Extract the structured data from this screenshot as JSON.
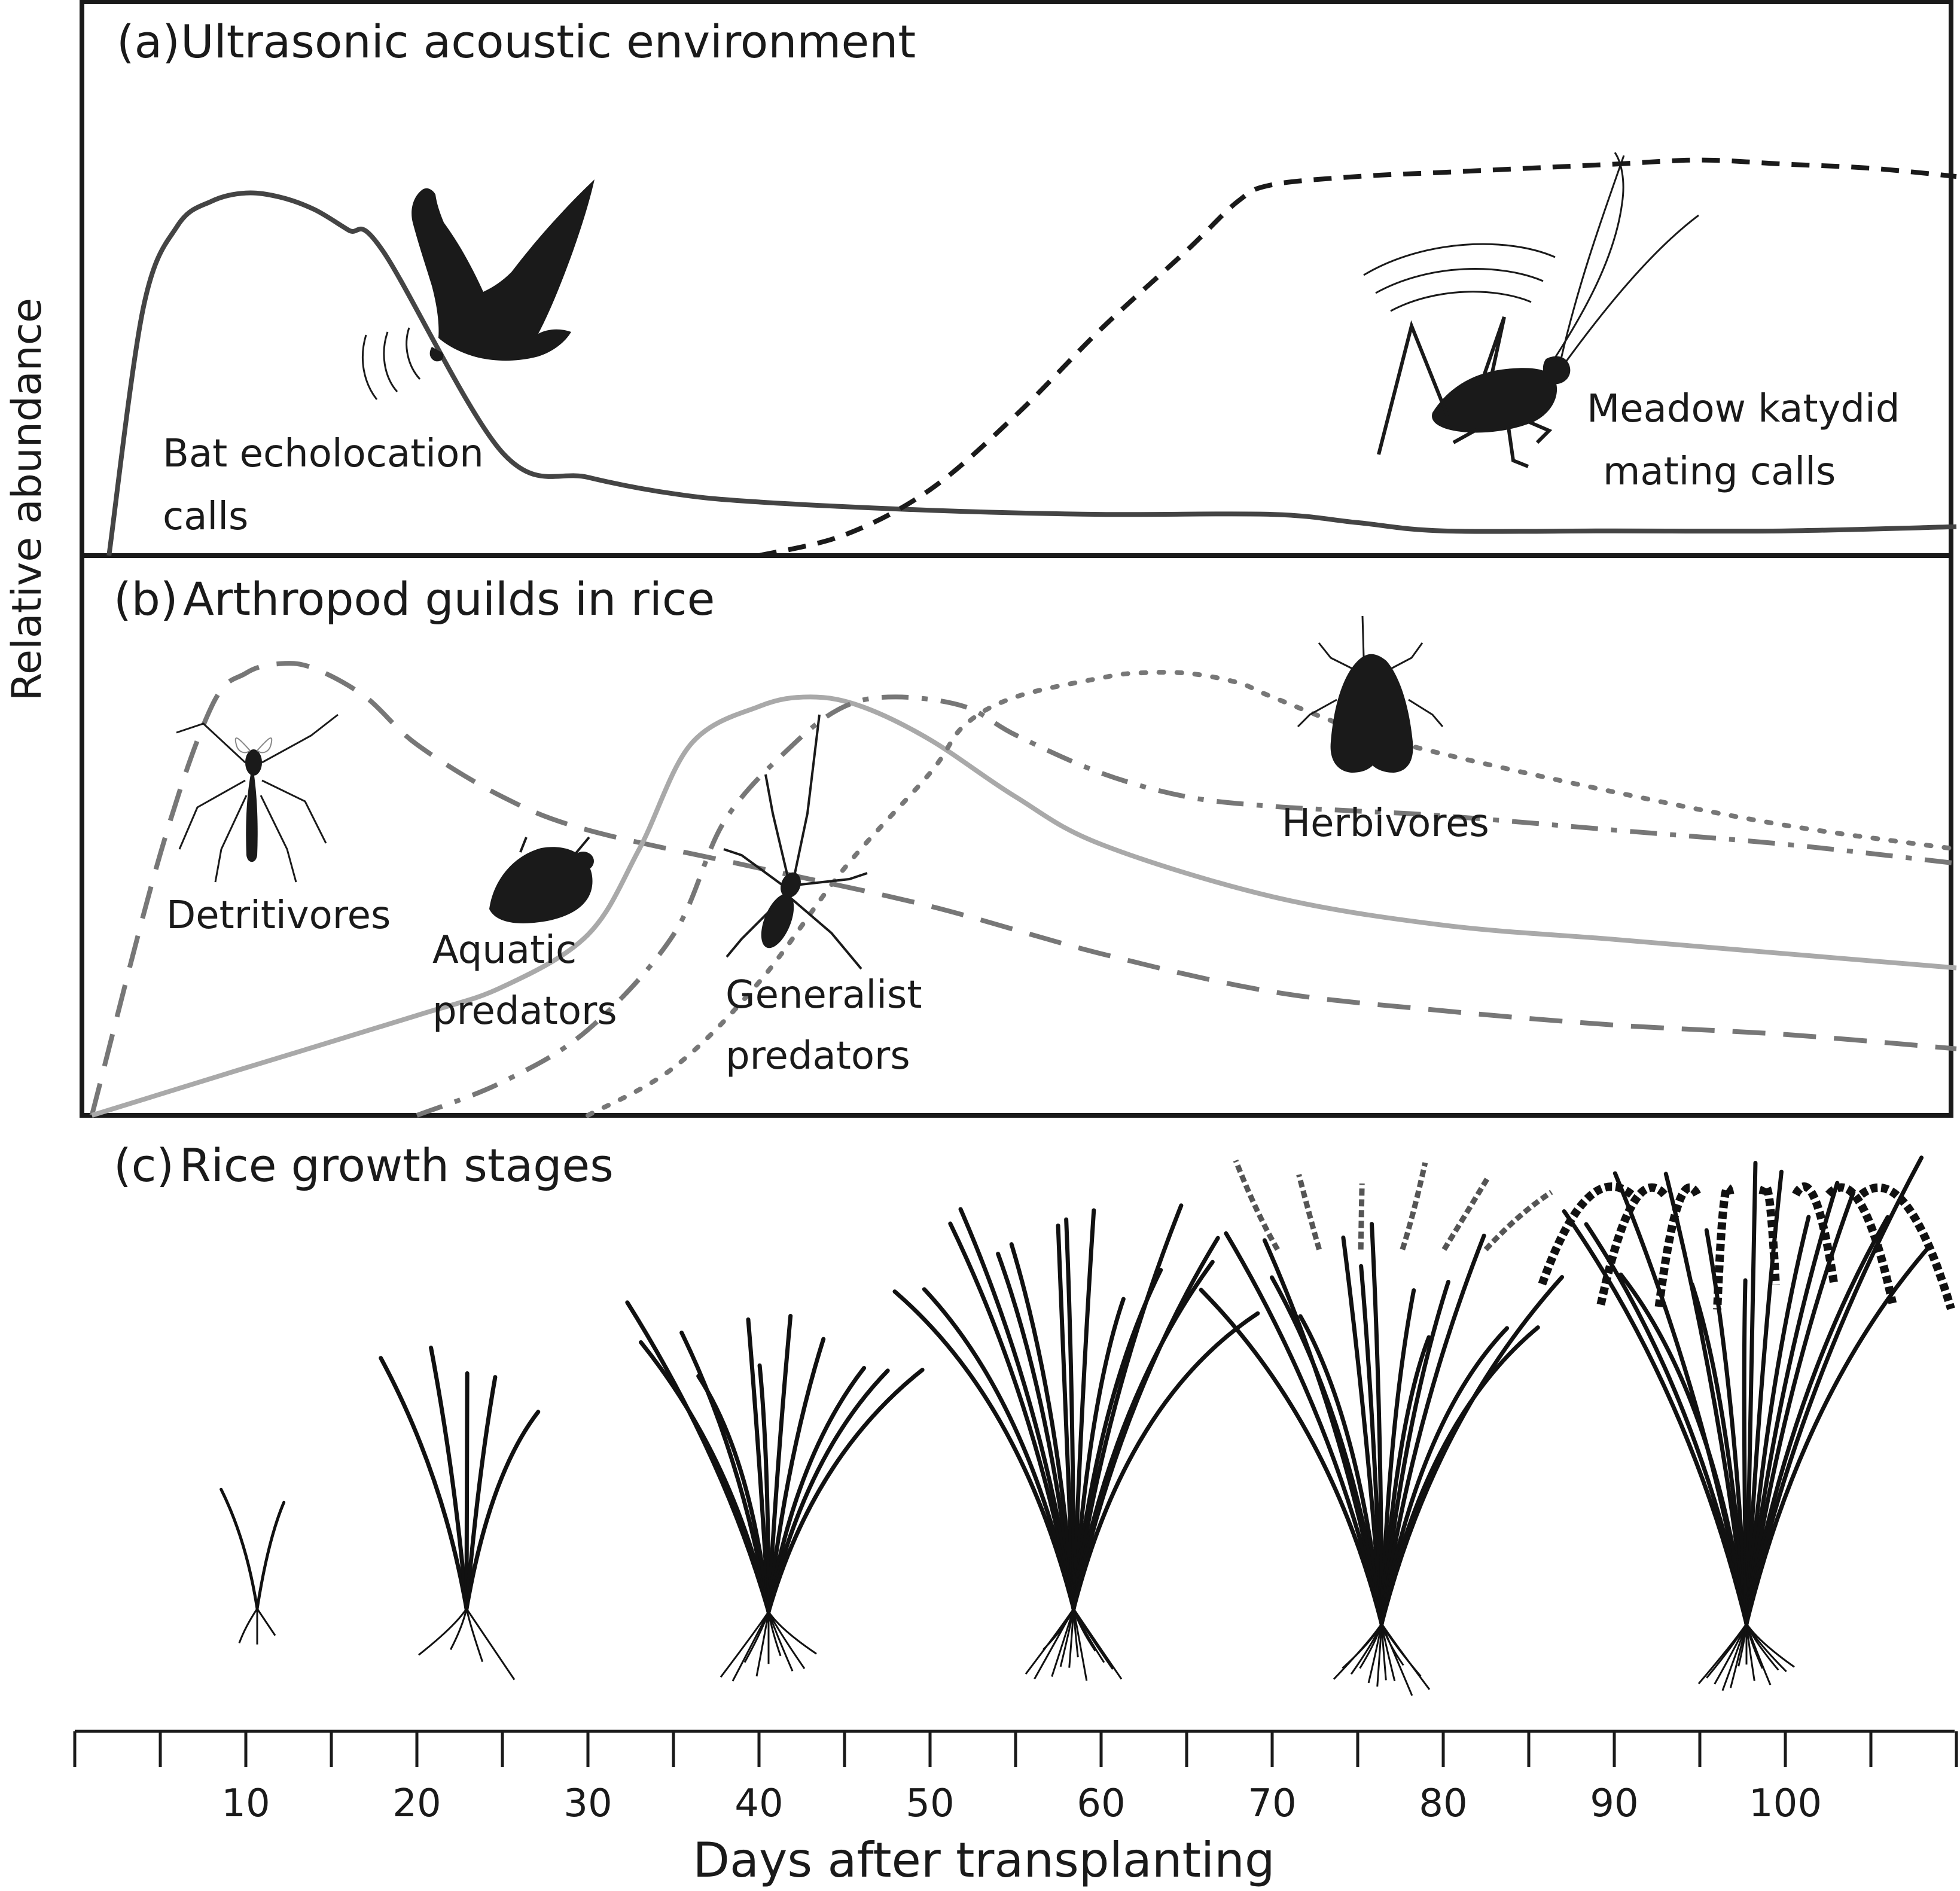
{
  "y_axis_label": "Relative abundance",
  "panels": {
    "a": {
      "label": "(a)",
      "title": "Ultrasonic acoustic environment",
      "annotations": {
        "bat_line1": "Bat echolocation",
        "bat_line2": "calls",
        "katydid_line1": "Meadow katydid",
        "katydid_line2": "mating calls"
      }
    },
    "b": {
      "label": "(b)",
      "title": "Arthropod guilds in rice",
      "annotations": {
        "detritivores": "Detritivores",
        "aquatic_line1": "Aquatic",
        "aquatic_line2": "predators",
        "generalist_line1": "Generalist",
        "generalist_line2": "predators",
        "herbivores": "Herbivores"
      }
    },
    "c": {
      "label": "(c)",
      "title": "Rice growth stages"
    }
  },
  "x_axis": {
    "label": "Days after transplanting",
    "ticks": [
      "10",
      "20",
      "30",
      "40",
      "50",
      "60",
      "70",
      "80",
      "90",
      "100"
    ],
    "range": [
      0,
      110
    ]
  },
  "chart_data": [
    {
      "type": "line",
      "panel": "a",
      "title": "Ultrasonic acoustic environment",
      "xlabel": "Days after transplanting",
      "ylabel": "Relative abundance",
      "xlim": [
        0,
        110
      ],
      "ylim": [
        0,
        1
      ],
      "series": [
        {
          "name": "Bat echolocation calls",
          "style": "solid",
          "color": "#444444",
          "x": [
            2,
            4,
            6,
            8,
            10,
            12,
            14,
            16,
            18,
            25,
            30,
            35,
            40,
            50,
            60,
            70,
            75,
            80,
            90,
            100,
            110
          ],
          "y": [
            0,
            0.6,
            0.8,
            0.86,
            0.88,
            0.87,
            0.84,
            0.79,
            0.74,
            0.25,
            0.19,
            0.15,
            0.13,
            0.11,
            0.1,
            0.1,
            0.08,
            0.06,
            0.06,
            0.06,
            0.07
          ]
        },
        {
          "name": "Meadow katydid mating calls",
          "style": "dashed",
          "color": "#1a1a1a",
          "x": [
            40,
            45,
            50,
            55,
            60,
            65,
            68,
            70,
            75,
            80,
            85,
            90,
            95,
            100,
            105,
            110
          ],
          "y": [
            0,
            0.05,
            0.16,
            0.34,
            0.55,
            0.74,
            0.86,
            0.9,
            0.92,
            0.93,
            0.94,
            0.95,
            0.96,
            0.95,
            0.94,
            0.92
          ]
        }
      ]
    },
    {
      "type": "line",
      "panel": "b",
      "title": "Arthropod guilds in rice",
      "xlabel": "Days after transplanting",
      "ylabel": "Relative abundance",
      "xlim": [
        0,
        110
      ],
      "ylim": [
        0,
        1
      ],
      "series": [
        {
          "name": "Detritivores",
          "style": "long-dash",
          "color": "#777777",
          "x": [
            1,
            5,
            8,
            10,
            12,
            14,
            17,
            20,
            25,
            30,
            40,
            50,
            60,
            70,
            80,
            90,
            100,
            110
          ],
          "y": [
            0,
            0.55,
            0.86,
            0.93,
            0.95,
            0.94,
            0.88,
            0.78,
            0.67,
            0.6,
            0.52,
            0.44,
            0.34,
            0.26,
            0.22,
            0.19,
            0.17,
            0.14
          ]
        },
        {
          "name": "Aquatic predators",
          "style": "solid",
          "color": "#a9a9a9",
          "x": [
            1,
            10,
            20,
            25,
            30,
            33,
            36,
            40,
            43,
            46,
            50,
            55,
            60,
            70,
            80,
            90,
            100,
            110
          ],
          "y": [
            0,
            0.1,
            0.21,
            0.27,
            0.38,
            0.56,
            0.78,
            0.86,
            0.88,
            0.86,
            0.79,
            0.67,
            0.57,
            0.46,
            0.4,
            0.37,
            0.34,
            0.31
          ]
        },
        {
          "name": "Generalist predators",
          "style": "dash-dot",
          "color": "#777777",
          "x": [
            20,
            25,
            30,
            35,
            38,
            42,
            45,
            48,
            52,
            55,
            60,
            65,
            70,
            75,
            80,
            90,
            100,
            110
          ],
          "y": [
            0,
            0.07,
            0.18,
            0.38,
            0.62,
            0.78,
            0.86,
            0.88,
            0.86,
            0.8,
            0.72,
            0.67,
            0.65,
            0.64,
            0.63,
            0.6,
            0.57,
            0.53
          ]
        },
        {
          "name": "Herbivores",
          "style": "dotted",
          "color": "#777777",
          "x": [
            30,
            35,
            40,
            45,
            50,
            52,
            55,
            60,
            62,
            65,
            68,
            70,
            75,
            80,
            90,
            100,
            110
          ],
          "y": [
            0,
            0.1,
            0.28,
            0.52,
            0.72,
            0.82,
            0.88,
            0.92,
            0.93,
            0.93,
            0.91,
            0.88,
            0.81,
            0.76,
            0.68,
            0.61,
            0.56
          ]
        }
      ]
    }
  ]
}
